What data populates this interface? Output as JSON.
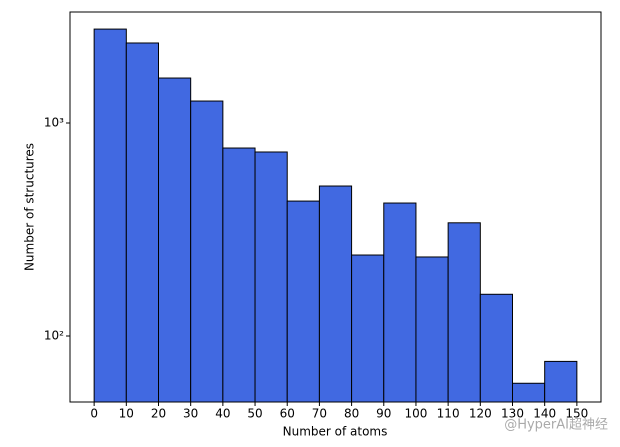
{
  "chart_data": {
    "type": "histogram",
    "x_label": "Number of atoms",
    "y_label": "Number of structures",
    "bins": [
      0,
      10,
      20,
      30,
      40,
      50,
      60,
      70,
      80,
      90,
      100,
      110,
      120,
      130,
      140,
      150
    ],
    "counts": [
      2760,
      2375,
      1626,
      1268,
      763,
      731,
      430,
      506,
      240,
      421,
      235,
      340,
      157,
      60,
      76
    ],
    "color": "#4169e1",
    "edgecolor": "#000000",
    "xlim": [
      -7.5,
      157.5
    ],
    "xticks": [
      0,
      10,
      20,
      30,
      40,
      50,
      60,
      70,
      80,
      90,
      100,
      110,
      120,
      130,
      140,
      150
    ],
    "ylim": [
      49,
      3320
    ],
    "yscale": "log",
    "yticks": [
      {
        "value": 100,
        "label": "10²"
      },
      {
        "value": 1000,
        "label": "10³"
      }
    ],
    "watermark": "@HyperAI超神经"
  }
}
